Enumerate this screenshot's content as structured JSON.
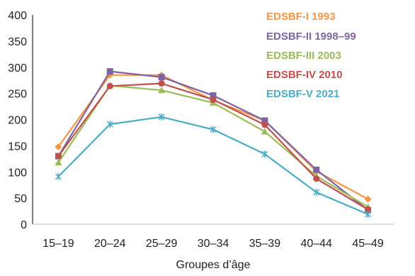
{
  "chart_data": {
    "type": "line",
    "title": "",
    "xlabel": "Groupes d’âge",
    "ylabel": "",
    "ylim": [
      0,
      400
    ],
    "yticks": [
      0,
      50,
      100,
      150,
      200,
      250,
      300,
      350,
      400
    ],
    "grid": false,
    "legend_position": "top-right",
    "categories": [
      "15–19",
      "20–24",
      "25–29",
      "30–34",
      "35–39",
      "40–44",
      "45–49"
    ],
    "series": [
      {
        "name": "EDSBF-I 1993",
        "color": "#F79646",
        "marker": "diamond",
        "values": [
          148,
          285,
          285,
          237,
          198,
          101,
          48
        ]
      },
      {
        "name": "EDSBF-II 1998–99",
        "color": "#8064A2",
        "marker": "square",
        "values": [
          130,
          292,
          281,
          246,
          198,
          104,
          27
        ]
      },
      {
        "name": "EDSBF-III 2003",
        "color": "#9BBB59",
        "marker": "triangle",
        "values": [
          118,
          265,
          256,
          232,
          177,
          92,
          33
        ]
      },
      {
        "name": "EDSBF-IV 2010",
        "color": "#C0504D",
        "marker": "circle",
        "values": [
          130,
          264,
          269,
          238,
          190,
          87,
          28
        ]
      },
      {
        "name": "EDSBF-V 2021",
        "color": "#4BACC6",
        "marker": "star",
        "values": [
          91,
          191,
          205,
          181,
          134,
          61,
          19
        ]
      }
    ]
  }
}
